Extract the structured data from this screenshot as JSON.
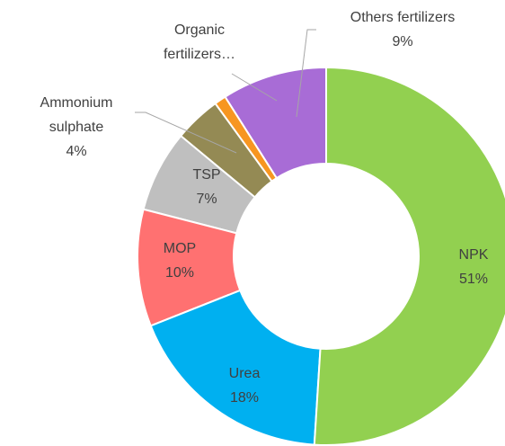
{
  "chart_data": {
    "type": "donut",
    "categories": [
      "NPK",
      "Urea",
      "MOP",
      "TSP",
      "Ammonium sulphate",
      "Organic fertilizers…",
      "Others fertilizers"
    ],
    "values": [
      51,
      18,
      10,
      7,
      4,
      1,
      9
    ],
    "value_labels": [
      "51%",
      "18%",
      "10%",
      "7%",
      "4%",
      null,
      "9%"
    ],
    "colors": [
      "#92d050",
      "#00b0f0",
      "#ff7171",
      "#bfbfbf",
      "#948a54",
      "#f79621",
      "#a86cd6"
    ]
  }
}
